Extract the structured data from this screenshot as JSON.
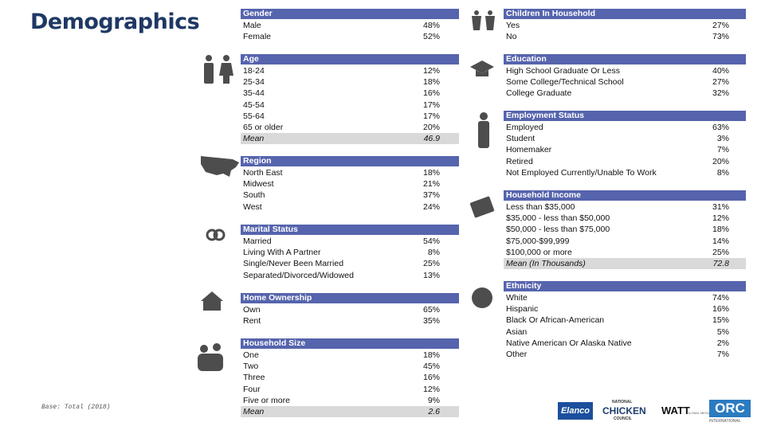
{
  "header": {
    "title": "Demographics"
  },
  "footer": {
    "base": "Base: Total (2018)"
  },
  "logos": [
    "Elanco",
    "NATIONAL",
    "CHICKEN",
    "COUNCIL",
    "WATT",
    "GLOBAL MEDIA",
    "ORC",
    "INTERNATIONAL"
  ],
  "left": [
    {
      "header": "Gender",
      "rows": [
        [
          "Male",
          "48%"
        ],
        [
          "Female",
          "52%"
        ]
      ]
    },
    {
      "header": "Age",
      "rows": [
        [
          "18-24",
          "12%"
        ],
        [
          "25-34",
          "18%"
        ],
        [
          "35-44",
          "16%"
        ],
        [
          "45-54",
          "17%"
        ],
        [
          "55-64",
          "17%"
        ],
        [
          "65 or older",
          "20%"
        ]
      ],
      "mean": [
        "Mean",
        "46.9"
      ]
    },
    {
      "header": "Region",
      "rows": [
        [
          "North East",
          "18%"
        ],
        [
          "Midwest",
          "21%"
        ],
        [
          "South",
          "37%"
        ],
        [
          "West",
          "24%"
        ]
      ]
    },
    {
      "header": "Marital Status",
      "rows": [
        [
          "Married",
          "54%"
        ],
        [
          "Living With A Partner",
          "8%"
        ],
        [
          "Single/Never Been Married",
          "25%"
        ],
        [
          "Separated/Divorced/Widowed",
          "13%"
        ]
      ]
    },
    {
      "header": "Home Ownership",
      "rows": [
        [
          "Own",
          "65%"
        ],
        [
          "Rent",
          "35%"
        ]
      ]
    },
    {
      "header": "Household Size",
      "rows": [
        [
          "One",
          "18%"
        ],
        [
          "Two",
          "45%"
        ],
        [
          "Three",
          "16%"
        ],
        [
          "Four",
          "12%"
        ],
        [
          "Five or more",
          "9%"
        ]
      ],
      "mean": [
        "Mean",
        "2.6"
      ]
    }
  ],
  "right": [
    {
      "header": "Children In Household",
      "rows": [
        [
          "Yes",
          "27%"
        ],
        [
          "No",
          "73%"
        ]
      ]
    },
    {
      "header": "Education",
      "rows": [
        [
          "High School Graduate Or Less",
          "40%"
        ],
        [
          "Some College/Technical School",
          "27%"
        ],
        [
          "College Graduate",
          "32%"
        ]
      ]
    },
    {
      "header": "Employment Status",
      "rows": [
        [
          "Employed",
          "63%"
        ],
        [
          "Student",
          "3%"
        ],
        [
          "Homemaker",
          "7%"
        ],
        [
          "Retired",
          "20%"
        ],
        [
          "Not Employed Currently/Unable To Work",
          "8%"
        ]
      ]
    },
    {
      "header": "Household Income",
      "rows": [
        [
          "Less than $35,000",
          "31%"
        ],
        [
          "$35,000 - less than $50,000",
          "12%"
        ],
        [
          "$50,000 - less than $75,000",
          "18%"
        ],
        [
          "$75,000-$99,999",
          "14%"
        ],
        [
          "$100,000 or more",
          "25%"
        ]
      ],
      "mean": [
        "Mean (In Thousands)",
        "72.8"
      ]
    },
    {
      "header": "Ethnicity",
      "rows": [
        [
          "White",
          "74%"
        ],
        [
          "Hispanic",
          "16%"
        ],
        [
          "Black Or African-American",
          "15%"
        ],
        [
          "Asian",
          "5%"
        ],
        [
          "Native American Or Alaska Native",
          "2%"
        ],
        [
          "Other",
          "7%"
        ]
      ]
    }
  ]
}
